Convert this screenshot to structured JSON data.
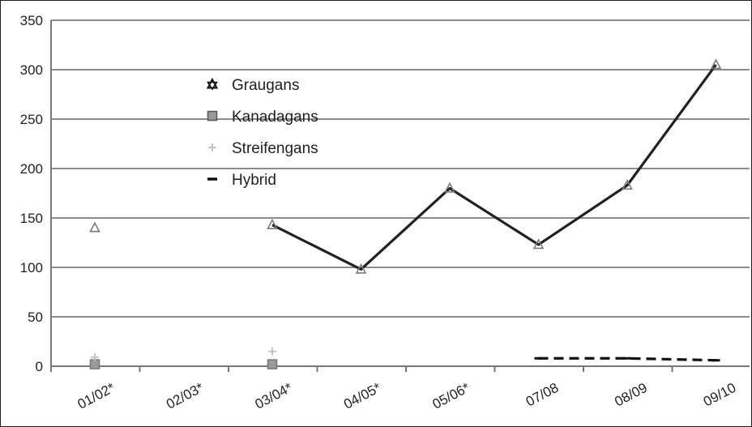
{
  "chart_data": {
    "type": "line",
    "categories": [
      "01/02*",
      "02/03*",
      "03/04*",
      "04/05*",
      "05/06*",
      "07/08",
      "08/09",
      "09/10"
    ],
    "ylim": [
      0,
      350
    ],
    "yticks": [
      0,
      50,
      100,
      150,
      200,
      250,
      300,
      350
    ],
    "grid": true,
    "legend_position": "upper-left",
    "title": "",
    "xlabel": "",
    "ylabel": "",
    "series": [
      {
        "name": "Graugans",
        "marker": "triangle",
        "line": "solid",
        "color": "#222222",
        "marker_color": "#7a7a7a",
        "values": [
          140,
          null,
          143,
          98,
          180,
          123,
          183,
          305
        ]
      },
      {
        "name": "Kanadagans",
        "marker": "square",
        "line": "none",
        "color": "#666666",
        "marker_color": "#777777",
        "values": [
          2,
          null,
          2,
          null,
          null,
          null,
          null,
          null
        ]
      },
      {
        "name": "Streifengans",
        "marker": "plus",
        "line": "none",
        "color": "#bdbdbd",
        "marker_color": "#c0c0c0",
        "values": [
          9,
          null,
          15,
          null,
          null,
          null,
          null,
          null
        ]
      },
      {
        "name": "Hybrid",
        "marker": "dash",
        "line": "dashed",
        "color": "#111111",
        "marker_color": "#111111",
        "values": [
          null,
          null,
          null,
          null,
          null,
          8,
          8,
          6
        ]
      }
    ]
  }
}
